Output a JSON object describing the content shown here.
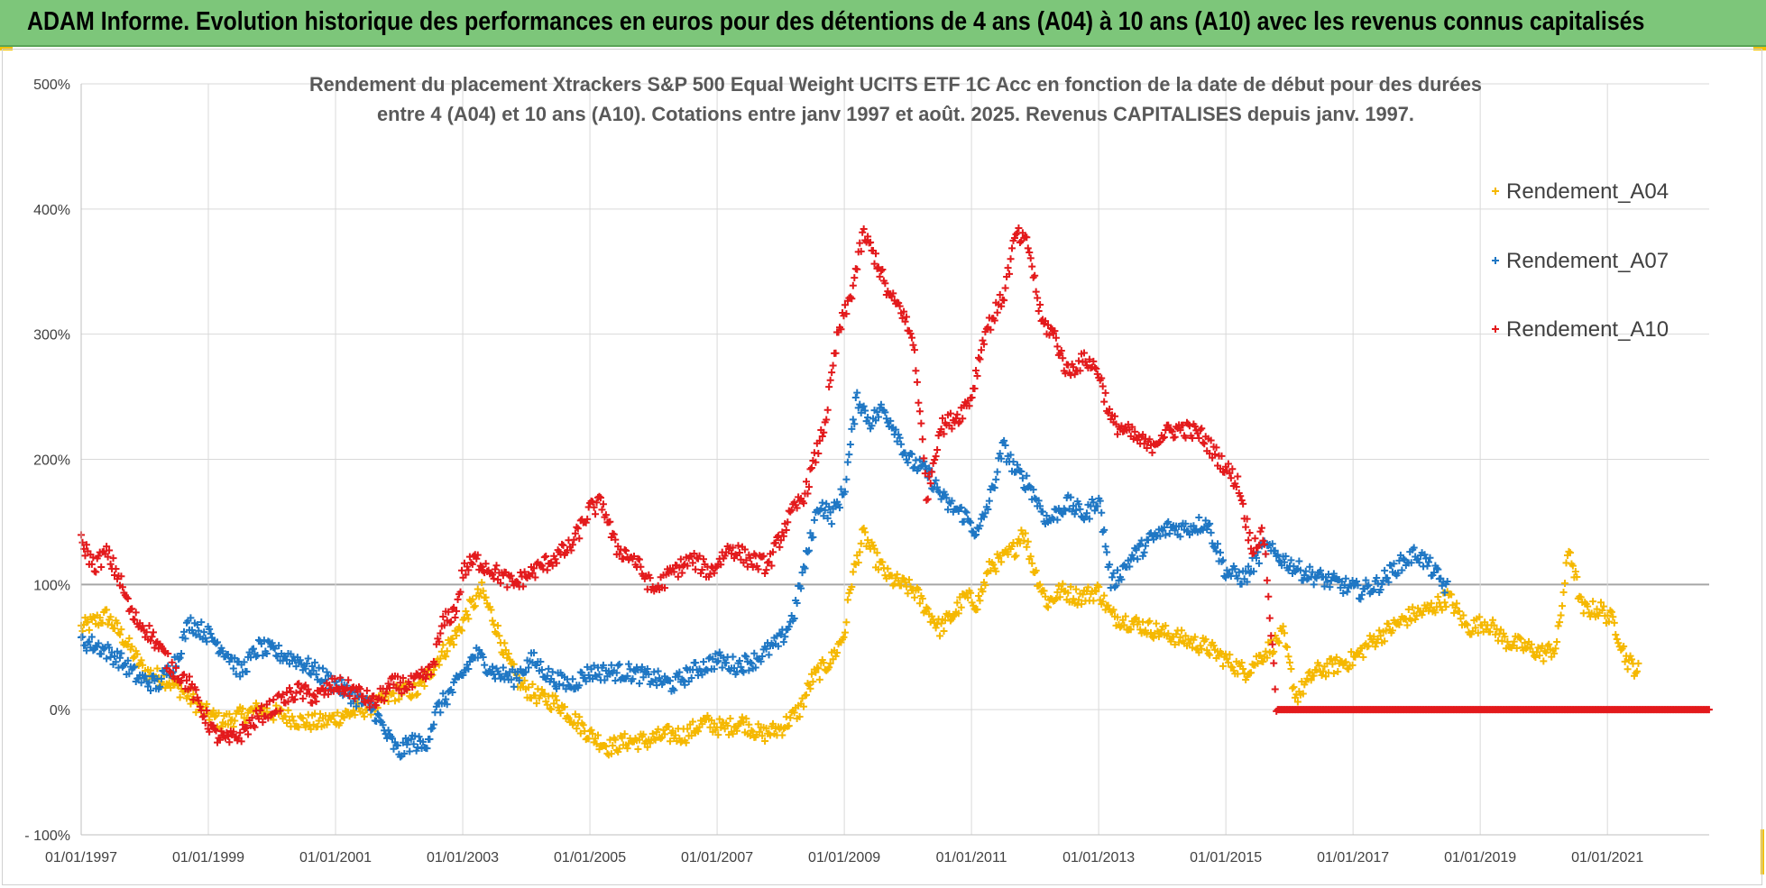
{
  "banner": {
    "title": "ADAM Informe. Evolution historique des performances en euros pour des détentions de 4 ans (A04) à 10 ans (A10) avec les revenus connus capitalisés"
  },
  "chart_data": {
    "type": "scatter",
    "title_lines": [
      "Rendement du placement Xtrackers S&P 500 Equal Weight UCITS ETF 1C Acc en fonction de la date de début pour des durées",
      "entre 4 (A04) et 10 ans (A10). Cotations entre janv 1997 et août. 2025. Revenus CAPITALISES depuis janv. 1997."
    ],
    "x_ticks": [
      "01/01/1997",
      "01/01/1999",
      "01/01/2001",
      "01/01/2003",
      "01/01/2005",
      "01/01/2007",
      "01/01/2009",
      "01/01/2011",
      "01/01/2013",
      "01/01/2015",
      "01/01/2017",
      "01/01/2019",
      "01/01/2021"
    ],
    "y_ticks": [
      "- 100%",
      "0%",
      "100%",
      "200%",
      "300%",
      "400%",
      "500%"
    ],
    "x_range": [
      1997.0,
      2022.6
    ],
    "ylim": [
      -100,
      500
    ],
    "grid": "on",
    "legend_position": "right",
    "marker": "+",
    "series": [
      {
        "name": "Rendement_A04",
        "color": "#f5b800",
        "x_start": 1997.0,
        "x_end": 2021.5,
        "points": [
          [
            1997.0,
            65
          ],
          [
            1997.4,
            75
          ],
          [
            1997.7,
            55
          ],
          [
            1998.0,
            30
          ],
          [
            1998.3,
            25
          ],
          [
            1998.6,
            15
          ],
          [
            1998.9,
            0
          ],
          [
            1999.2,
            -10
          ],
          [
            1999.5,
            -5
          ],
          [
            1999.8,
            0
          ],
          [
            2000.2,
            -5
          ],
          [
            2000.5,
            -10
          ],
          [
            2000.8,
            -10
          ],
          [
            2001.1,
            -5
          ],
          [
            2001.4,
            0
          ],
          [
            2001.7,
            5
          ],
          [
            2002.0,
            15
          ],
          [
            2002.3,
            15
          ],
          [
            2002.6,
            40
          ],
          [
            2002.9,
            60
          ],
          [
            2003.1,
            80
          ],
          [
            2003.3,
            95
          ],
          [
            2003.5,
            70
          ],
          [
            2003.7,
            40
          ],
          [
            2003.9,
            20
          ],
          [
            2004.2,
            10
          ],
          [
            2004.5,
            5
          ],
          [
            2004.8,
            -10
          ],
          [
            2005.0,
            -20
          ],
          [
            2005.3,
            -30
          ],
          [
            2005.6,
            -25
          ],
          [
            2005.9,
            -25
          ],
          [
            2006.2,
            -20
          ],
          [
            2006.5,
            -20
          ],
          [
            2006.8,
            -10
          ],
          [
            2007.1,
            -15
          ],
          [
            2007.4,
            -10
          ],
          [
            2007.7,
            -20
          ],
          [
            2008.0,
            -15
          ],
          [
            2008.3,
            0
          ],
          [
            2008.5,
            25
          ],
          [
            2008.8,
            40
          ],
          [
            2009.0,
            60
          ],
          [
            2009.1,
            100
          ],
          [
            2009.3,
            140
          ],
          [
            2009.5,
            120
          ],
          [
            2009.7,
            105
          ],
          [
            2009.9,
            100
          ],
          [
            2010.1,
            95
          ],
          [
            2010.3,
            80
          ],
          [
            2010.5,
            65
          ],
          [
            2010.7,
            75
          ],
          [
            2010.9,
            90
          ],
          [
            2011.1,
            85
          ],
          [
            2011.3,
            115
          ],
          [
            2011.5,
            120
          ],
          [
            2011.7,
            130
          ],
          [
            2011.8,
            145
          ],
          [
            2012.0,
            110
          ],
          [
            2012.2,
            85
          ],
          [
            2012.4,
            95
          ],
          [
            2012.7,
            90
          ],
          [
            2013.0,
            95
          ],
          [
            2013.2,
            75
          ],
          [
            2013.5,
            70
          ],
          [
            2013.8,
            65
          ],
          [
            2014.1,
            60
          ],
          [
            2014.4,
            55
          ],
          [
            2014.7,
            50
          ],
          [
            2015.0,
            40
          ],
          [
            2015.3,
            30
          ],
          [
            2015.6,
            45
          ],
          [
            2015.9,
            60
          ],
          [
            2016.1,
            10
          ],
          [
            2016.4,
            30
          ],
          [
            2016.7,
            35
          ],
          [
            2017.0,
            40
          ],
          [
            2017.3,
            55
          ],
          [
            2017.6,
            65
          ],
          [
            2017.9,
            75
          ],
          [
            2018.2,
            80
          ],
          [
            2018.5,
            90
          ],
          [
            2018.8,
            65
          ],
          [
            2019.1,
            70
          ],
          [
            2019.4,
            55
          ],
          [
            2019.7,
            50
          ],
          [
            2020.0,
            45
          ],
          [
            2020.2,
            50
          ],
          [
            2020.4,
            130
          ],
          [
            2020.6,
            80
          ],
          [
            2020.9,
            80
          ],
          [
            2021.1,
            70
          ],
          [
            2021.3,
            40
          ],
          [
            2021.5,
            30
          ]
        ]
      },
      {
        "name": "Rendement_A07",
        "color": "#1f77c4",
        "x_start": 1997.0,
        "x_end": 2018.5,
        "points": [
          [
            1997.0,
            55
          ],
          [
            1997.3,
            50
          ],
          [
            1997.6,
            40
          ],
          [
            1997.9,
            25
          ],
          [
            1998.2,
            20
          ],
          [
            1998.5,
            40
          ],
          [
            1998.7,
            70
          ],
          [
            1999.0,
            60
          ],
          [
            1999.3,
            45
          ],
          [
            1999.5,
            30
          ],
          [
            1999.8,
            50
          ],
          [
            2000.1,
            45
          ],
          [
            2000.4,
            40
          ],
          [
            2000.7,
            30
          ],
          [
            2001.0,
            20
          ],
          [
            2001.3,
            10
          ],
          [
            2001.6,
            0
          ],
          [
            2001.8,
            -20
          ],
          [
            2002.0,
            -35
          ],
          [
            2002.2,
            -25
          ],
          [
            2002.4,
            -30
          ],
          [
            2002.6,
            0
          ],
          [
            2002.9,
            20
          ],
          [
            2003.2,
            45
          ],
          [
            2003.5,
            30
          ],
          [
            2003.8,
            25
          ],
          [
            2004.1,
            40
          ],
          [
            2004.4,
            25
          ],
          [
            2004.7,
            20
          ],
          [
            2005.0,
            30
          ],
          [
            2005.3,
            30
          ],
          [
            2005.6,
            30
          ],
          [
            2006.0,
            25
          ],
          [
            2006.3,
            20
          ],
          [
            2006.6,
            30
          ],
          [
            2007.0,
            40
          ],
          [
            2007.3,
            35
          ],
          [
            2007.6,
            40
          ],
          [
            2008.0,
            55
          ],
          [
            2008.2,
            75
          ],
          [
            2008.4,
            120
          ],
          [
            2008.6,
            165
          ],
          [
            2008.8,
            155
          ],
          [
            2009.0,
            175
          ],
          [
            2009.2,
            250
          ],
          [
            2009.4,
            230
          ],
          [
            2009.6,
            240
          ],
          [
            2009.8,
            225
          ],
          [
            2010.0,
            200
          ],
          [
            2010.3,
            190
          ],
          [
            2010.6,
            165
          ],
          [
            2010.9,
            155
          ],
          [
            2011.1,
            140
          ],
          [
            2011.3,
            170
          ],
          [
            2011.5,
            210
          ],
          [
            2011.7,
            190
          ],
          [
            2011.9,
            180
          ],
          [
            2012.2,
            150
          ],
          [
            2012.5,
            165
          ],
          [
            2012.8,
            155
          ],
          [
            2013.0,
            170
          ],
          [
            2013.2,
            100
          ],
          [
            2013.5,
            120
          ],
          [
            2013.8,
            135
          ],
          [
            2014.1,
            145
          ],
          [
            2014.4,
            145
          ],
          [
            2014.7,
            150
          ],
          [
            2015.0,
            110
          ],
          [
            2015.3,
            105
          ],
          [
            2015.6,
            130
          ],
          [
            2015.9,
            120
          ],
          [
            2016.2,
            110
          ],
          [
            2016.5,
            105
          ],
          [
            2016.8,
            100
          ],
          [
            2017.1,
            95
          ],
          [
            2017.4,
            100
          ],
          [
            2017.7,
            115
          ],
          [
            2018.0,
            125
          ],
          [
            2018.2,
            115
          ],
          [
            2018.5,
            95
          ]
        ]
      },
      {
        "name": "Rendement_A10",
        "color": "#e31a1c",
        "x_start": 1997.0,
        "x_end": 2022.6,
        "points": [
          [
            1997.0,
            135
          ],
          [
            1997.2,
            115
          ],
          [
            1997.4,
            125
          ],
          [
            1997.6,
            105
          ],
          [
            1997.8,
            75
          ],
          [
            1998.1,
            60
          ],
          [
            1998.4,
            35
          ],
          [
            1998.7,
            20
          ],
          [
            1998.9,
            0
          ],
          [
            1999.1,
            -20
          ],
          [
            1999.3,
            -25
          ],
          [
            1999.5,
            -20
          ],
          [
            1999.8,
            -5
          ],
          [
            2000.1,
            5
          ],
          [
            2000.4,
            15
          ],
          [
            2000.7,
            10
          ],
          [
            2001.0,
            20
          ],
          [
            2001.3,
            15
          ],
          [
            2001.6,
            5
          ],
          [
            2001.9,
            20
          ],
          [
            2002.2,
            20
          ],
          [
            2002.5,
            30
          ],
          [
            2002.7,
            70
          ],
          [
            2002.9,
            80
          ],
          [
            2003.0,
            110
          ],
          [
            2003.2,
            120
          ],
          [
            2003.5,
            110
          ],
          [
            2003.8,
            100
          ],
          [
            2004.1,
            110
          ],
          [
            2004.4,
            120
          ],
          [
            2004.7,
            130
          ],
          [
            2005.0,
            160
          ],
          [
            2005.2,
            165
          ],
          [
            2005.4,
            130
          ],
          [
            2005.7,
            120
          ],
          [
            2006.0,
            95
          ],
          [
            2006.3,
            110
          ],
          [
            2006.6,
            120
          ],
          [
            2006.9,
            110
          ],
          [
            2007.2,
            130
          ],
          [
            2007.5,
            120
          ],
          [
            2007.8,
            115
          ],
          [
            2008.1,
            150
          ],
          [
            2008.4,
            175
          ],
          [
            2008.7,
            230
          ],
          [
            2008.9,
            300
          ],
          [
            2009.1,
            330
          ],
          [
            2009.3,
            380
          ],
          [
            2009.5,
            360
          ],
          [
            2009.7,
            330
          ],
          [
            2009.9,
            320
          ],
          [
            2010.1,
            290
          ],
          [
            2010.3,
            170
          ],
          [
            2010.5,
            225
          ],
          [
            2010.8,
            235
          ],
          [
            2011.0,
            250
          ],
          [
            2011.2,
            300
          ],
          [
            2011.5,
            330
          ],
          [
            2011.7,
            380
          ],
          [
            2011.9,
            370
          ],
          [
            2012.1,
            310
          ],
          [
            2012.3,
            300
          ],
          [
            2012.5,
            270
          ],
          [
            2012.8,
            280
          ],
          [
            2013.0,
            270
          ],
          [
            2013.2,
            230
          ],
          [
            2013.5,
            220
          ],
          [
            2013.8,
            210
          ],
          [
            2014.0,
            220
          ],
          [
            2014.3,
            225
          ],
          [
            2014.6,
            220
          ],
          [
            2014.9,
            200
          ],
          [
            2015.2,
            180
          ],
          [
            2015.4,
            130
          ],
          [
            2015.6,
            140
          ],
          [
            2015.8,
            0
          ],
          [
            2022.6,
            0
          ]
        ]
      }
    ]
  }
}
